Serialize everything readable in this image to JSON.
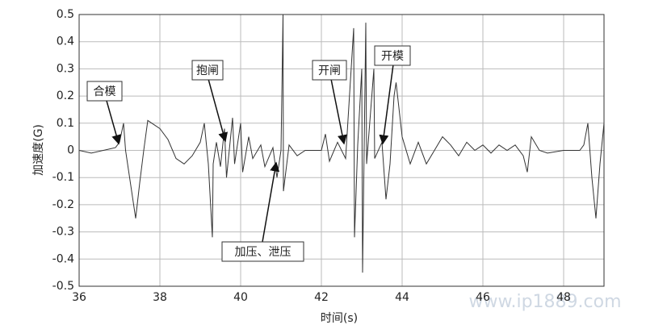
{
  "chart_data": {
    "type": "line",
    "x_label": "时间(s)",
    "y_label": "加速度(G)",
    "xlim": [
      36,
      49
    ],
    "xticks": [
      36,
      38,
      40,
      42,
      44,
      46,
      48
    ],
    "ylim": [
      -0.5,
      0.5
    ],
    "yticks": [
      -0.5,
      -0.4,
      -0.3,
      -0.2,
      -0.1,
      0,
      0.1,
      0.2,
      0.3,
      0.4,
      0.5
    ],
    "grid": true,
    "annotations": [
      "合模",
      "抱闸",
      "开闸",
      "开模",
      "加压、泄压"
    ],
    "watermark": "www.ip1889.com",
    "x": [
      36.0,
      36.3,
      36.6,
      36.9,
      37.0,
      37.1,
      37.15,
      37.25,
      37.4,
      37.5,
      37.6,
      37.7,
      37.8,
      38.0,
      38.2,
      38.4,
      38.6,
      38.8,
      39.0,
      39.1,
      39.2,
      39.3,
      39.32,
      39.4,
      39.5,
      39.6,
      39.65,
      39.8,
      39.85,
      40.0,
      40.05,
      40.2,
      40.3,
      40.5,
      40.6,
      40.8,
      40.9,
      41.0,
      41.05,
      41.06,
      41.2,
      41.4,
      41.6,
      42.0,
      42.1,
      42.2,
      42.4,
      42.6,
      42.8,
      42.82,
      42.9,
      43.0,
      43.02,
      43.1,
      43.12,
      43.3,
      43.32,
      43.5,
      43.6,
      43.7,
      43.8,
      43.85,
      44.0,
      44.2,
      44.4,
      44.6,
      44.8,
      45.0,
      45.2,
      45.4,
      45.6,
      45.8,
      46.0,
      46.2,
      46.4,
      46.6,
      46.8,
      47.0,
      47.1,
      47.2,
      47.4,
      47.6,
      48.0,
      48.4,
      48.5,
      48.6,
      48.7,
      48.8,
      48.9,
      49.0
    ],
    "series": [
      {
        "color": "#333333",
        "values": [
          0.0,
          -0.01,
          0.0,
          0.01,
          0.03,
          0.1,
          0.0,
          -0.1,
          -0.25,
          -0.12,
          0.0,
          0.11,
          0.1,
          0.08,
          0.04,
          -0.03,
          -0.05,
          -0.02,
          0.03,
          0.1,
          -0.05,
          -0.32,
          -0.05,
          0.03,
          -0.06,
          0.08,
          -0.1,
          0.12,
          -0.05,
          0.1,
          -0.08,
          0.05,
          -0.03,
          0.02,
          -0.06,
          0.01,
          -0.1,
          0.0,
          0.5,
          -0.15,
          0.02,
          -0.02,
          0.0,
          0.0,
          0.06,
          -0.04,
          0.03,
          -0.03,
          0.45,
          -0.32,
          0.02,
          0.3,
          -0.45,
          0.47,
          -0.05,
          0.3,
          -0.03,
          0.03,
          -0.18,
          -0.05,
          0.2,
          0.25,
          0.05,
          -0.05,
          0.03,
          -0.05,
          0.0,
          0.05,
          0.02,
          -0.02,
          0.03,
          0.0,
          0.02,
          -0.01,
          0.02,
          0.0,
          0.02,
          -0.02,
          -0.08,
          0.05,
          0.0,
          -0.01,
          0.0,
          0.0,
          0.02,
          0.1,
          -0.1,
          -0.25,
          -0.05,
          0.1
        ]
      }
    ]
  }
}
